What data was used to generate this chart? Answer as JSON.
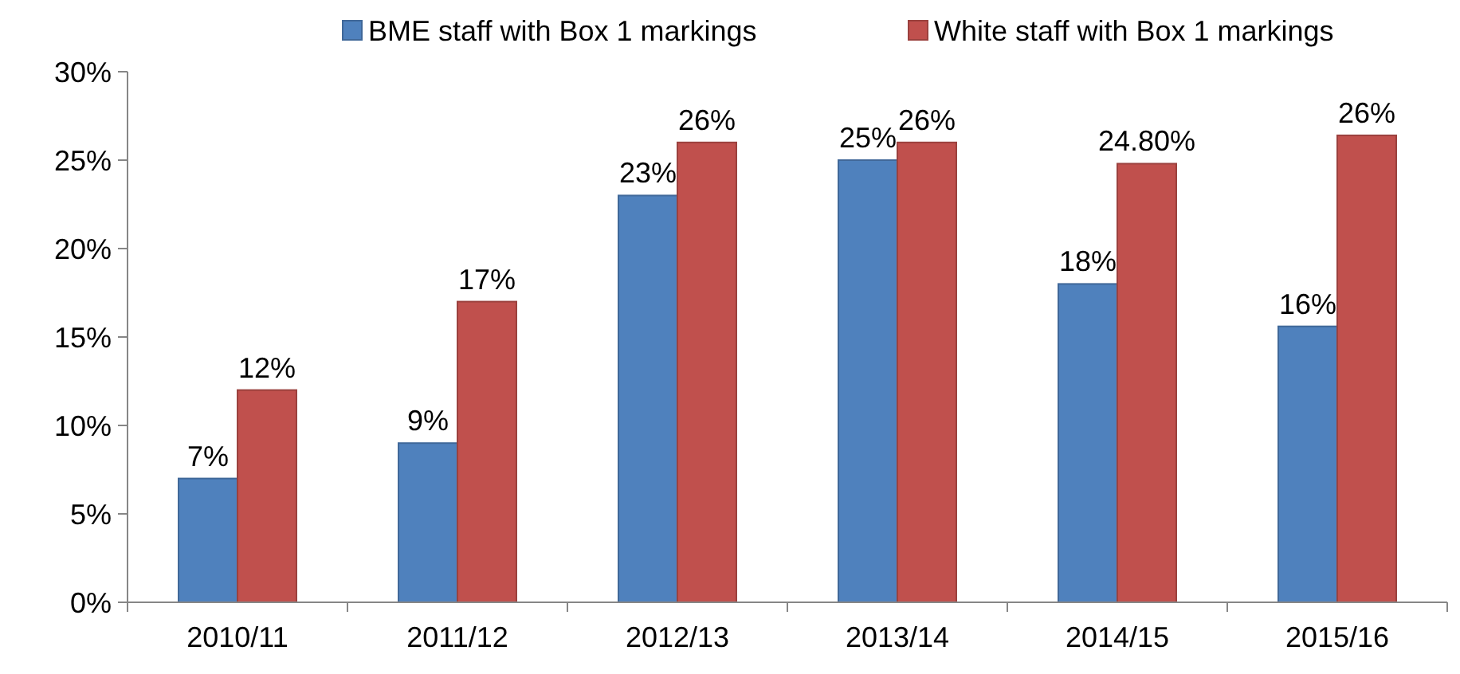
{
  "chart_data": {
    "type": "bar",
    "categories": [
      "2010/11",
      "2011/12",
      "2012/13",
      "2013/14",
      "2014/15",
      "2015/16"
    ],
    "series": [
      {
        "name": "BME staff with Box 1 markings",
        "color": "#4f81bd",
        "values": [
          7,
          9,
          23,
          25,
          18,
          15.6
        ],
        "value_labels": [
          "7%",
          "9%",
          "23%",
          "25%",
          "18%",
          "16%"
        ]
      },
      {
        "name": "White staff with Box 1 markings",
        "color": "#c0504d",
        "values": [
          12,
          17,
          26,
          26,
          24.8,
          26.4
        ],
        "value_labels": [
          "12%",
          "17%",
          "26%",
          "26%",
          "24.80%",
          "26%"
        ]
      }
    ],
    "ylim": [
      0,
      30
    ],
    "yticks": [
      {
        "value": 0,
        "label": "0%"
      },
      {
        "value": 5,
        "label": "5%"
      },
      {
        "value": 10,
        "label": "10%"
      },
      {
        "value": 15,
        "label": "15%"
      },
      {
        "value": 20,
        "label": "20%"
      },
      {
        "value": 25,
        "label": "25%"
      },
      {
        "value": 30,
        "label": "30%"
      }
    ],
    "grid": false,
    "legend": "top"
  }
}
